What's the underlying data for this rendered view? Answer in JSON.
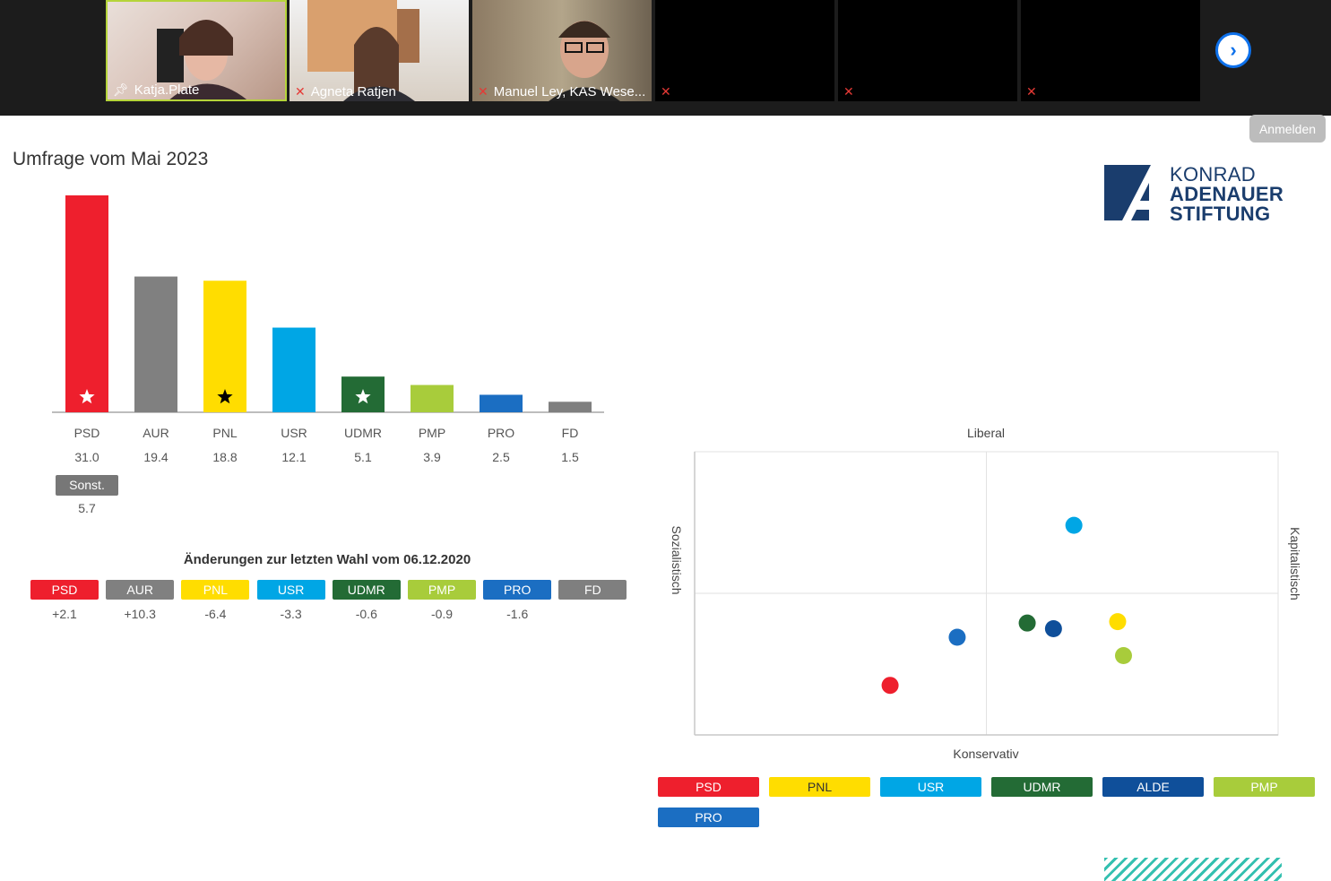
{
  "gallery": {
    "participants": [
      {
        "name": "Katja.Plate",
        "pinned": true,
        "muted": false
      },
      {
        "name": "Agneta Ratjen",
        "pinned": false,
        "muted": true
      },
      {
        "name": "Manuel Ley, KAS Wese...",
        "pinned": false,
        "muted": true
      },
      {
        "name": "",
        "pinned": false,
        "muted": true
      },
      {
        "name": "",
        "pinned": false,
        "muted": true
      },
      {
        "name": "",
        "pinned": false,
        "muted": true
      }
    ],
    "next_icon": "chevron-right-icon",
    "login_label": "Anmelden"
  },
  "slide": {
    "title": "Umfrage vom Mai 2023",
    "logo": {
      "line1": "KONRAD",
      "line2": "ADENAUER",
      "line3": "STIFTUNG"
    }
  },
  "chart_data": [
    {
      "type": "bar",
      "categories": [
        "PSD",
        "AUR",
        "PNL",
        "USR",
        "UDMR",
        "PMP",
        "PRO",
        "FD"
      ],
      "values": [
        31.0,
        19.4,
        18.8,
        12.1,
        5.1,
        3.9,
        2.5,
        1.5
      ],
      "value_labels": [
        "31.0",
        "19.4",
        "18.8",
        "12.1",
        "5.1",
        "3.9",
        "2.5",
        "1.5"
      ],
      "colors": [
        "#ee1f2d",
        "#808080",
        "#ffdd00",
        "#00a6e5",
        "#236b35",
        "#a8cc3b",
        "#1b6ec2",
        "#7f7f7f"
      ],
      "markers": [
        "star-white",
        "",
        "star-black",
        "",
        "star-white",
        "",
        "",
        ""
      ],
      "other": {
        "label": "Sonst.",
        "value": "5.7"
      },
      "ylim": [
        0,
        31
      ]
    },
    {
      "type": "table",
      "title": "Änderungen zur letzten Wahl vom 06.12.2020",
      "items": [
        {
          "label": "PSD",
          "value": "+2.1",
          "color": "#ee1f2d"
        },
        {
          "label": "AUR",
          "value": "+10.3",
          "color": "#808080"
        },
        {
          "label": "PNL",
          "value": "-6.4",
          "color": "#ffdd00"
        },
        {
          "label": "USR",
          "value": "-3.3",
          "color": "#00a6e5"
        },
        {
          "label": "UDMR",
          "value": "-0.6",
          "color": "#236b35"
        },
        {
          "label": "PMP",
          "value": "-0.9",
          "color": "#a8cc3b"
        },
        {
          "label": "PRO",
          "value": "-1.6",
          "color": "#1b6ec2"
        },
        {
          "label": "FD",
          "value": "",
          "color": "#7f7f7f"
        }
      ]
    },
    {
      "type": "scatter",
      "axis_top": "Liberal",
      "axis_bottom": "Konservativ",
      "axis_left": "Sozialistisch",
      "axis_right": "Kapitalistisch",
      "xlim": [
        -1,
        1
      ],
      "ylim": [
        -1,
        1
      ],
      "points": [
        {
          "party": "USR",
          "x": 0.3,
          "y": 0.48,
          "color": "#00a6e5"
        },
        {
          "party": "UDMR",
          "x": 0.14,
          "y": -0.21,
          "color": "#236b35"
        },
        {
          "party": "ALDE",
          "x": 0.23,
          "y": -0.25,
          "color": "#0f4f9a"
        },
        {
          "party": "PNL",
          "x": 0.45,
          "y": -0.2,
          "color": "#ffdd00"
        },
        {
          "party": "PMP",
          "x": 0.47,
          "y": -0.44,
          "color": "#a8cc3b"
        },
        {
          "party": "PRO",
          "x": -0.1,
          "y": -0.31,
          "color": "#1b6ec2"
        },
        {
          "party": "PSD",
          "x": -0.33,
          "y": -0.65,
          "color": "#ee1f2d"
        }
      ],
      "legend": [
        {
          "label": "PSD",
          "color": "#ee1f2d"
        },
        {
          "label": "PNL",
          "color": "#ffdd00"
        },
        {
          "label": "USR",
          "color": "#00a6e5"
        },
        {
          "label": "UDMR",
          "color": "#236b35"
        },
        {
          "label": "ALDE",
          "color": "#0f4f9a"
        },
        {
          "label": "PMP",
          "color": "#a8cc3b"
        },
        {
          "label": "PRO",
          "color": "#1b6ec2"
        }
      ]
    }
  ]
}
